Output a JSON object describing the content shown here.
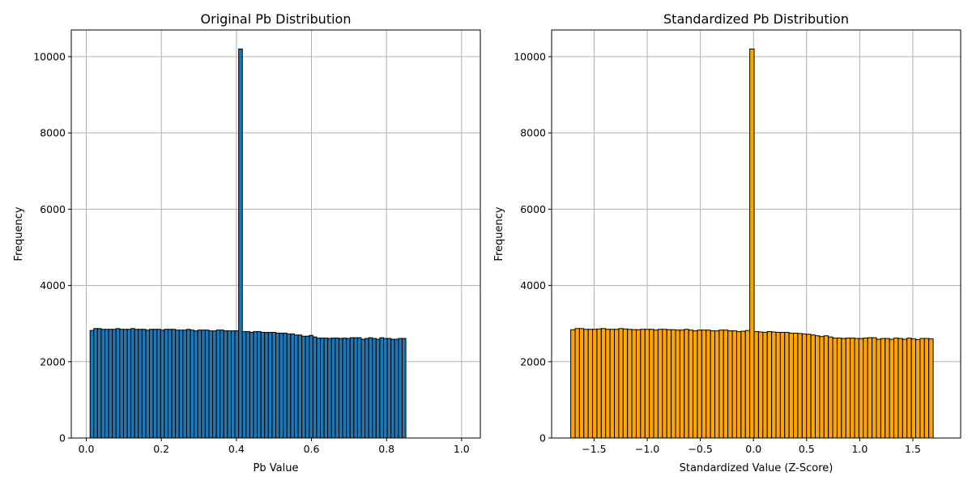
{
  "chart_data": [
    {
      "type": "bar",
      "title": "Original Pb Distribution",
      "xlabel": "Pb Value",
      "ylabel": "Frequency",
      "xlim": [
        -0.04,
        1.05
      ],
      "ylim": [
        0,
        10700
      ],
      "xticks": [
        0.0,
        0.2,
        0.4,
        0.6,
        0.8,
        1.0
      ],
      "xtick_labels": [
        "0.0",
        "0.2",
        "0.4",
        "0.6",
        "0.8",
        "1.0"
      ],
      "yticks": [
        0,
        2000,
        4000,
        6000,
        8000,
        10000
      ],
      "ytick_labels": [
        "0",
        "2000",
        "4000",
        "6000",
        "8000",
        "10000"
      ],
      "grid": true,
      "color": "#1f77b4",
      "edgecolor": "#000000",
      "bin_start": 0.01,
      "bin_width": 0.0099,
      "values": [
        2820,
        2870,
        2870,
        2850,
        2850,
        2850,
        2850,
        2870,
        2850,
        2850,
        2850,
        2870,
        2850,
        2850,
        2850,
        2830,
        2850,
        2850,
        2850,
        2830,
        2850,
        2850,
        2850,
        2830,
        2830,
        2830,
        2850,
        2830,
        2810,
        2830,
        2830,
        2830,
        2810,
        2810,
        2830,
        2830,
        2810,
        2810,
        2810,
        2810,
        10200,
        2790,
        2790,
        2770,
        2790,
        2790,
        2770,
        2770,
        2770,
        2770,
        2750,
        2750,
        2750,
        2730,
        2730,
        2700,
        2700,
        2670,
        2670,
        2690,
        2650,
        2620,
        2620,
        2620,
        2610,
        2620,
        2620,
        2610,
        2620,
        2610,
        2630,
        2630,
        2630,
        2590,
        2610,
        2630,
        2610,
        2590,
        2630,
        2610,
        2610,
        2590,
        2590,
        2610,
        2610
      ]
    },
    {
      "type": "bar",
      "title": "Standardized Pb Distribution",
      "xlabel": "Standardized Value (Z-Score)",
      "ylabel": "Frequency",
      "xlim": [
        -1.9,
        1.95
      ],
      "ylim": [
        0,
        10700
      ],
      "xticks": [
        -1.5,
        -1.0,
        -0.5,
        0.0,
        0.5,
        1.0,
        1.5
      ],
      "xtick_labels": [
        "−1.5",
        "−1.0",
        "−0.5",
        "0.0",
        "0.5",
        "1.0",
        "1.5"
      ],
      "yticks": [
        0,
        2000,
        4000,
        6000,
        8000,
        10000
      ],
      "ytick_labels": [
        "0",
        "2000",
        "4000",
        "6000",
        "8000",
        "10000"
      ],
      "grid": true,
      "color": "#ffa500",
      "edgecolor": "#000000",
      "bin_start": -1.72,
      "bin_width": 0.0411,
      "values": [
        2840,
        2870,
        2870,
        2850,
        2850,
        2850,
        2860,
        2870,
        2850,
        2850,
        2850,
        2870,
        2860,
        2850,
        2840,
        2840,
        2850,
        2850,
        2850,
        2830,
        2850,
        2850,
        2840,
        2840,
        2830,
        2830,
        2850,
        2830,
        2810,
        2830,
        2830,
        2830,
        2810,
        2810,
        2830,
        2830,
        2810,
        2810,
        2790,
        2800,
        2820,
        10200,
        2790,
        2780,
        2770,
        2790,
        2780,
        2770,
        2770,
        2770,
        2750,
        2750,
        2740,
        2730,
        2720,
        2700,
        2680,
        2660,
        2680,
        2650,
        2620,
        2620,
        2610,
        2620,
        2620,
        2610,
        2610,
        2620,
        2630,
        2630,
        2590,
        2610,
        2610,
        2590,
        2620,
        2610,
        2590,
        2620,
        2600,
        2580,
        2610,
        2610,
        2600
      ]
    }
  ]
}
